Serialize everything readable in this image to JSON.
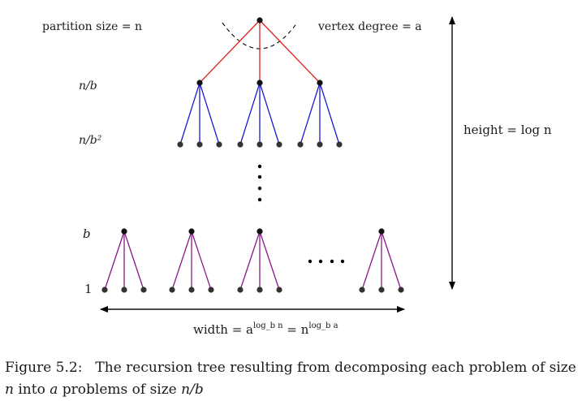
{
  "diagram": {
    "labels": {
      "partition_size": "partition size = n",
      "vertex_degree": "vertex degree = a",
      "level_1": "n/b",
      "level_2": "n/b²",
      "level_b": "b",
      "level_leaf": "1",
      "height": "height = log n",
      "width_prefix": "width = a",
      "width_exp1": "log_b n",
      "width_mid": " = n",
      "width_exp2": "log_b a"
    },
    "colors": {
      "top_edges": "#e02020",
      "second_edges": "#1a1ad0",
      "bottom_edges": "#8a1a8a",
      "node": "#111111",
      "leaf_node": "#333333",
      "arrows": "#000000"
    }
  },
  "caption": {
    "number": "Figure 5.2:",
    "text_1": "The recursion tree resulting from decomposing each problem of size ",
    "var_n": "n",
    "text_2": " into ",
    "var_a": "a",
    "text_3": " problems of size ",
    "var_nb": "n/b"
  }
}
